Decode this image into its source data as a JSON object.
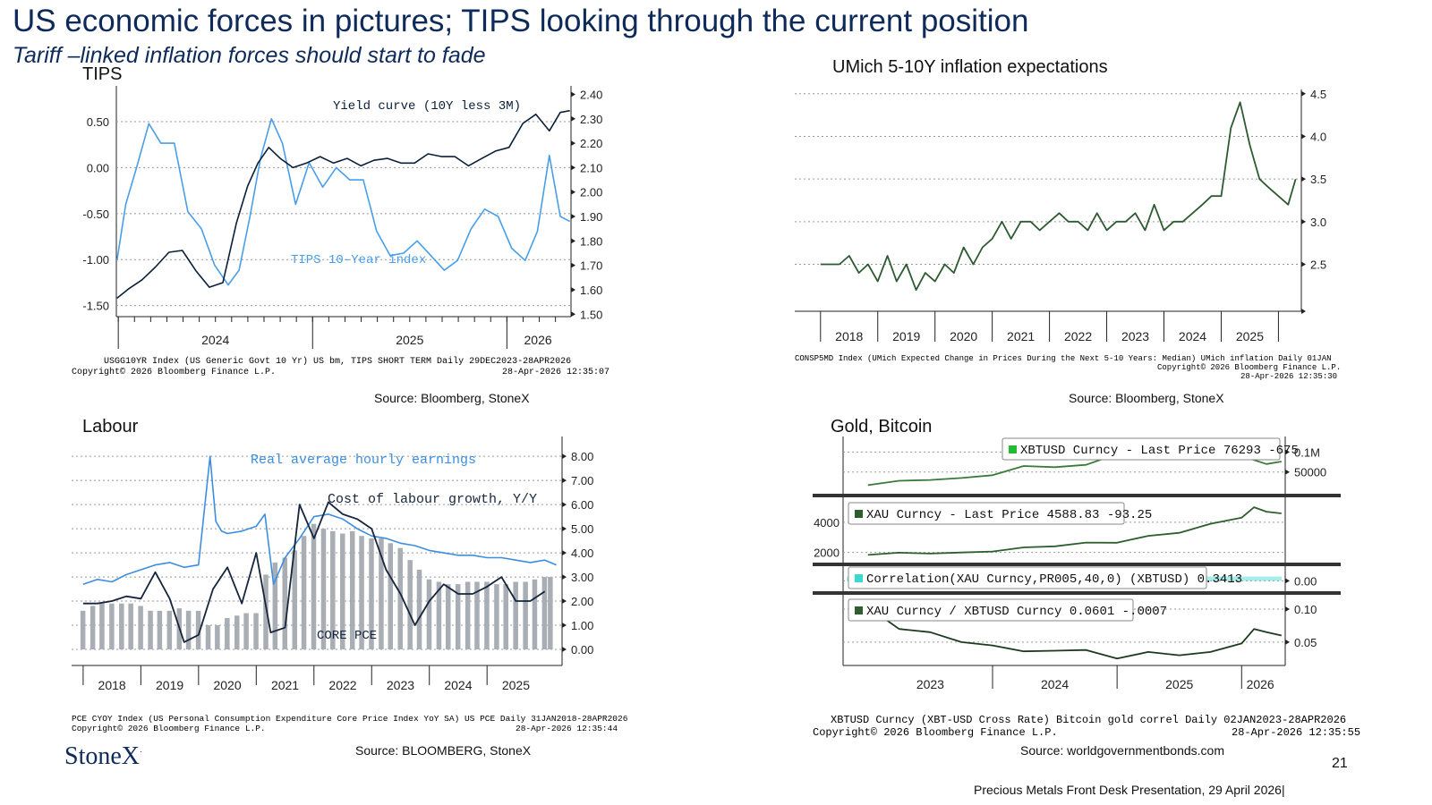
{
  "header": {
    "title": "US  economic forces in pictures; TIPS looking through the current position",
    "subtitle": "Tariff –linked inflation forces should start to fade"
  },
  "panels": {
    "tips": {
      "label": "TIPS",
      "footnote1": "USGG10YR Index (US Generic Govt 10 Yr) US bm, TIPS SHORT TERM Daily 29DEC2023-28APR2026",
      "footnote2": "Copyright© 2026 Bloomberg Finance L.P.",
      "footnote3": "28-Apr-2026 12:35:07",
      "source": "Source: Bloomberg, StoneX"
    },
    "umich": {
      "label": "UMich 5-10Y inflation expectations",
      "footnote1": "CONSP5MD Index (UMich Expected Change in Prices During the Next 5-10 Years: Median) UMich inflation Daily 01JAN2018-28APR2026",
      "footnote2": "Copyright© 2026 Bloomberg Finance L.P.",
      "footnote3": "28-Apr-2026 12:35:30",
      "source": "Source: Bloomberg, StoneX"
    },
    "labour": {
      "label": "Labour",
      "footnote1": "PCE CYOY Index (US Personal Consumption Expenditure Core Price Index YoY SA) US PCE Daily 31JAN2018-28APR2026",
      "footnote2": "Copyright© 2026 Bloomberg Finance L.P.",
      "footnote3": "28-Apr-2026 12:35:44",
      "source": "Source: BLOOMBERG, StoneX"
    },
    "gold": {
      "label": "Gold, Bitcoin",
      "footnote1": "XBTUSD Curncy (XBT-USD Cross Rate) Bitcoin gold correl Daily 02JAN2023-28APR2026",
      "footnote2": "Copyright© 2026 Bloomberg Finance L.P.",
      "footnote3": "28-Apr-2026 12:35:55",
      "source": "Source: worldgovernmentbonds.com"
    }
  },
  "footer": {
    "logo": "StoneX",
    "logo_mark": "·",
    "page_number": "21",
    "presentation": "Precious Metals Front Desk Presentation, 29 April 2026|"
  },
  "chart_data": [
    {
      "id": "tips",
      "type": "line",
      "colors": {
        "yield_curve": "#0b1f3a",
        "tips": "#4a9ee8"
      },
      "x_ticks": [
        "2024",
        "2025",
        "2026"
      ],
      "left_axis": {
        "ticks": [
          "-1.50",
          "-1.00",
          "-0.50",
          "0.00",
          "0.50"
        ],
        "ylim": [
          -1.62,
          0.85
        ]
      },
      "right_axis": {
        "ticks": [
          "1.50",
          "1.60",
          "1.70",
          "1.80",
          "1.90",
          "2.00",
          "2.10",
          "2.20",
          "2.30",
          "2.40"
        ],
        "ylim": [
          1.49,
          2.42
        ]
      },
      "series": [
        {
          "name": "Yield curve (10Y less 3M)",
          "axis": "left",
          "x": [
            "2023-12-29",
            "2024-01-20",
            "2024-02-15",
            "2024-03-10",
            "2024-04-05",
            "2024-04-30",
            "2024-05-25",
            "2024-06-20",
            "2024-07-15",
            "2024-08-10",
            "2024-08-31",
            "2024-09-20",
            "2024-10-10",
            "2024-11-01",
            "2024-11-25",
            "2024-12-20",
            "2025-01-15",
            "2025-02-10",
            "2025-03-05",
            "2025-03-31",
            "2025-04-25",
            "2025-05-20",
            "2025-06-15",
            "2025-07-10",
            "2025-08-05",
            "2025-08-31",
            "2025-09-25",
            "2025-10-20",
            "2025-11-15",
            "2025-12-10",
            "2026-01-05",
            "2026-01-31",
            "2026-02-25",
            "2026-03-20",
            "2026-04-10",
            "2026-04-28"
          ],
          "values": [
            -1.42,
            -1.32,
            -1.22,
            -1.08,
            -0.92,
            -0.9,
            -1.12,
            -1.3,
            -1.25,
            -0.6,
            -0.2,
            0.05,
            0.22,
            0.1,
            0.0,
            0.05,
            0.12,
            0.05,
            0.1,
            0.02,
            0.08,
            0.1,
            0.05,
            0.05,
            0.15,
            0.12,
            0.12,
            0.02,
            0.1,
            0.18,
            0.22,
            0.48,
            0.58,
            0.4,
            0.6,
            0.62
          ]
        },
        {
          "name": "TIPS 10-Year index",
          "axis": "right",
          "x": [
            "2023-12-29",
            "2024-01-15",
            "2024-02-05",
            "2024-02-28",
            "2024-03-20",
            "2024-04-15",
            "2024-05-10",
            "2024-06-05",
            "2024-06-30",
            "2024-07-25",
            "2024-08-15",
            "2024-09-05",
            "2024-09-25",
            "2024-10-15",
            "2024-11-05",
            "2024-11-30",
            "2024-12-25",
            "2025-01-20",
            "2025-02-15",
            "2025-03-10",
            "2025-04-05",
            "2025-04-30",
            "2025-05-25",
            "2025-06-20",
            "2025-07-15",
            "2025-08-10",
            "2025-09-05",
            "2025-09-30",
            "2025-10-25",
            "2025-11-20",
            "2025-12-15",
            "2026-01-10",
            "2026-02-05",
            "2026-02-28",
            "2026-03-20",
            "2026-04-10",
            "2026-04-28"
          ],
          "values": [
            1.72,
            1.95,
            2.1,
            2.28,
            2.2,
            2.2,
            1.92,
            1.85,
            1.7,
            1.62,
            1.68,
            1.9,
            2.14,
            2.3,
            2.2,
            1.95,
            2.12,
            2.02,
            2.1,
            2.05,
            2.05,
            1.84,
            1.74,
            1.75,
            1.8,
            1.74,
            1.68,
            1.72,
            1.85,
            1.93,
            1.9,
            1.77,
            1.72,
            1.84,
            2.15,
            1.9,
            1.88
          ]
        }
      ]
    },
    {
      "id": "umich",
      "type": "line",
      "colors": {
        "line": "#2e5a32"
      },
      "x_ticks": [
        "2018",
        "2019",
        "2020",
        "2021",
        "2022",
        "2023",
        "2024",
        "2025"
      ],
      "y_ticks": [
        "2.5",
        "3.0",
        "3.5",
        "4.0",
        "4.5"
      ],
      "ylim": [
        1.95,
        4.55
      ],
      "series": [
        {
          "name": "",
          "x": [
            2018.0,
            2018.17,
            2018.33,
            2018.5,
            2018.67,
            2018.83,
            2019.0,
            2019.17,
            2019.33,
            2019.5,
            2019.67,
            2019.83,
            2020.0,
            2020.17,
            2020.33,
            2020.5,
            2020.67,
            2020.83,
            2021.0,
            2021.17,
            2021.33,
            2021.5,
            2021.67,
            2021.83,
            2022.0,
            2022.17,
            2022.33,
            2022.5,
            2022.67,
            2022.83,
            2023.0,
            2023.17,
            2023.33,
            2023.5,
            2023.67,
            2023.83,
            2024.0,
            2024.17,
            2024.33,
            2024.5,
            2024.67,
            2024.83,
            2025.0,
            2025.17,
            2025.33,
            2025.5,
            2025.67,
            2025.83,
            2026.0,
            2026.17,
            2026.3
          ],
          "values": [
            2.5,
            2.5,
            2.5,
            2.6,
            2.4,
            2.5,
            2.3,
            2.6,
            2.3,
            2.5,
            2.2,
            2.4,
            2.3,
            2.5,
            2.4,
            2.7,
            2.5,
            2.7,
            2.8,
            3.0,
            2.8,
            3.0,
            3.0,
            2.9,
            3.0,
            3.1,
            3.0,
            3.0,
            2.9,
            3.1,
            2.9,
            3.0,
            3.0,
            3.1,
            2.9,
            3.2,
            2.9,
            3.0,
            3.0,
            3.1,
            3.2,
            3.3,
            3.3,
            4.1,
            4.4,
            3.9,
            3.5,
            3.4,
            3.3,
            3.2,
            3.5
          ]
        }
      ]
    },
    {
      "id": "labour",
      "type": "bar",
      "colors": {
        "bars": "#a9adb4",
        "earnings": "#3d8ee0",
        "labour_cost": "#16253d"
      },
      "x_ticks": [
        "2018",
        "2019",
        "2020",
        "2021",
        "2022",
        "2023",
        "2024",
        "2025"
      ],
      "y_ticks": [
        "0.00",
        "1.00",
        "2.00",
        "3.00",
        "4.00",
        "5.00",
        "6.00",
        "7.00",
        "8.00"
      ],
      "ylim": [
        0,
        8.6
      ],
      "series": [
        {
          "name": "CORE PCE",
          "kind": "bar",
          "x": [
            2018.0,
            2018.17,
            2018.33,
            2018.5,
            2018.67,
            2018.83,
            2019.0,
            2019.17,
            2019.33,
            2019.5,
            2019.67,
            2019.83,
            2020.0,
            2020.17,
            2020.33,
            2020.5,
            2020.67,
            2020.83,
            2021.0,
            2021.17,
            2021.33,
            2021.5,
            2021.67,
            2021.83,
            2022.0,
            2022.17,
            2022.33,
            2022.5,
            2022.67,
            2022.83,
            2023.0,
            2023.17,
            2023.33,
            2023.5,
            2023.67,
            2023.83,
            2024.0,
            2024.17,
            2024.33,
            2024.5,
            2024.67,
            2024.83,
            2025.0,
            2025.17,
            2025.33,
            2025.5,
            2025.67,
            2025.83,
            2026.0,
            2026.1
          ],
          "values": [
            1.6,
            1.8,
            1.9,
            1.9,
            1.9,
            1.9,
            1.8,
            1.6,
            1.6,
            1.6,
            1.7,
            1.6,
            1.6,
            1.0,
            1.0,
            1.3,
            1.4,
            1.5,
            1.5,
            3.1,
            3.6,
            3.8,
            4.1,
            4.7,
            5.2,
            5.0,
            4.9,
            4.8,
            4.9,
            4.7,
            4.6,
            4.6,
            4.4,
            4.2,
            3.7,
            3.3,
            2.9,
            2.8,
            2.7,
            2.7,
            2.8,
            2.8,
            2.8,
            2.7,
            2.7,
            2.8,
            2.8,
            2.9,
            3.0,
            3.0
          ]
        },
        {
          "name": "Real average hourly earnings",
          "kind": "line",
          "x": [
            2018.0,
            2018.25,
            2018.5,
            2018.75,
            2019.0,
            2019.25,
            2019.5,
            2019.75,
            2020.0,
            2020.2,
            2020.3,
            2020.4,
            2020.5,
            2020.75,
            2021.0,
            2021.15,
            2021.3,
            2021.5,
            2021.75,
            2022.0,
            2022.25,
            2022.5,
            2022.75,
            2023.0,
            2023.25,
            2023.5,
            2023.75,
            2024.0,
            2024.25,
            2024.5,
            2024.75,
            2025.0,
            2025.25,
            2025.5,
            2025.75,
            2026.0,
            2026.2
          ],
          "values": [
            2.7,
            2.9,
            2.8,
            3.1,
            3.3,
            3.5,
            3.6,
            3.4,
            3.5,
            8.0,
            5.3,
            4.9,
            4.8,
            4.9,
            5.1,
            5.6,
            2.7,
            3.8,
            4.6,
            5.5,
            5.6,
            5.4,
            5.0,
            4.7,
            4.6,
            4.4,
            4.3,
            4.1,
            4.0,
            3.9,
            3.9,
            3.8,
            3.8,
            3.7,
            3.6,
            3.7,
            3.5
          ]
        },
        {
          "name": "Cost of labour growth, Y/Y",
          "kind": "line",
          "x": [
            2018.0,
            2018.25,
            2018.5,
            2018.75,
            2019.0,
            2019.25,
            2019.5,
            2019.75,
            2020.0,
            2020.25,
            2020.5,
            2020.75,
            2021.0,
            2021.25,
            2021.5,
            2021.75,
            2022.0,
            2022.25,
            2022.5,
            2022.75,
            2023.0,
            2023.25,
            2023.5,
            2023.75,
            2024.0,
            2024.25,
            2024.5,
            2024.75,
            2025.0,
            2025.25,
            2025.5,
            2025.75,
            2026.0
          ],
          "values": [
            1.9,
            1.9,
            2.0,
            2.2,
            2.1,
            3.2,
            2.1,
            0.3,
            0.6,
            2.5,
            3.4,
            1.9,
            4.0,
            0.7,
            0.9,
            6.0,
            4.6,
            6.1,
            5.6,
            5.4,
            5.0,
            3.3,
            2.3,
            1.0,
            2.0,
            2.7,
            2.3,
            2.3,
            2.6,
            3.0,
            2.0,
            2.0,
            2.4
          ]
        }
      ],
      "annotations": [
        "Real average hourly earnings",
        "Cost of labour growth, Y/Y",
        "CORE PCE"
      ]
    },
    {
      "id": "gold_bitcoin",
      "type": "line",
      "x_ticks": [
        "2023",
        "2024",
        "2025",
        "2026"
      ],
      "subpanels": [
        {
          "name": "XBTUSD Curncy  - Last Price 76293  -675",
          "y_ticks": [
            "50000",
            "0.1M"
          ],
          "ylim": [
            0,
            130000
          ],
          "color": "#3b7a3b",
          "legend_swatch": "#22bb33",
          "x": [
            2023.0,
            2023.25,
            2023.5,
            2023.75,
            2024.0,
            2024.25,
            2024.5,
            2024.75,
            2025.0,
            2025.25,
            2025.5,
            2025.75,
            2026.0,
            2026.2,
            2026.32
          ],
          "values": [
            17000,
            28000,
            30000,
            35000,
            42000,
            65000,
            62000,
            68000,
            95000,
            84000,
            110000,
            115000,
            90000,
            70000,
            76293
          ]
        },
        {
          "name": "XAU Curncy  - Last Price 4588.83  -93.25",
          "y_ticks": [
            "2000",
            "4000"
          ],
          "ylim": [
            1500,
            5300
          ],
          "color": "#2d5e2d",
          "legend_swatch": "#2d5e2d",
          "x": [
            2023.0,
            2023.25,
            2023.5,
            2023.75,
            2024.0,
            2024.25,
            2024.5,
            2024.75,
            2025.0,
            2025.25,
            2025.5,
            2025.75,
            2026.0,
            2026.1,
            2026.2,
            2026.32
          ],
          "values": [
            1830,
            1980,
            1920,
            1990,
            2060,
            2330,
            2400,
            2650,
            2640,
            3100,
            3300,
            3900,
            4300,
            5000,
            4700,
            4588.83
          ]
        },
        {
          "name": "Correlation(XAU Curncy,PR005,40,0) (XBTUSD) 0.3413",
          "y_ticks": [
            "0.00"
          ],
          "ylim": [
            -0.6,
            0.8
          ],
          "color": "#39d9d0",
          "legend_swatch": "#39d9d0",
          "value": 0.3413
        },
        {
          "name": "XAU Curncy / XBTUSD Curncy 0.0601  -.0007",
          "y_ticks": [
            "0.05",
            "0.10"
          ],
          "ylim": [
            0.02,
            0.115
          ],
          "color": "#1e3a1e",
          "legend_swatch": "#2d5e2d",
          "x": [
            2023.0,
            2023.1,
            2023.25,
            2023.5,
            2023.75,
            2024.0,
            2024.25,
            2024.5,
            2024.75,
            2025.0,
            2025.25,
            2025.5,
            2025.75,
            2026.0,
            2026.1,
            2026.2,
            2026.32
          ],
          "values": [
            0.105,
            0.09,
            0.07,
            0.065,
            0.05,
            0.045,
            0.036,
            0.037,
            0.038,
            0.025,
            0.035,
            0.03,
            0.035,
            0.048,
            0.07,
            0.065,
            0.0601
          ]
        }
      ]
    }
  ]
}
